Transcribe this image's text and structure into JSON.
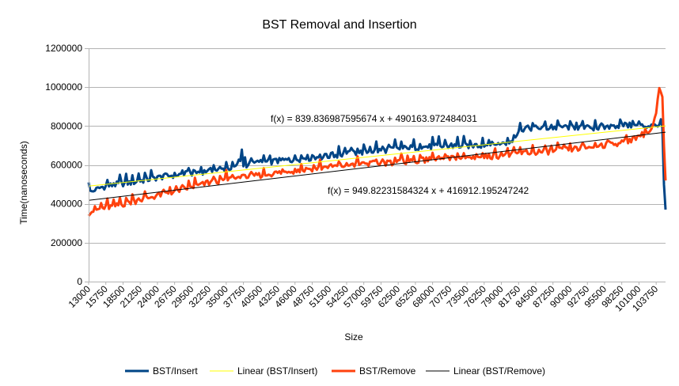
{
  "chart_data": {
    "type": "line",
    "title": "BST Removal and Insertion",
    "xlabel": "Size",
    "ylabel": "Time(nanoseconds)",
    "ylim": [
      0,
      1200000
    ],
    "y_ticks": [
      0,
      200000,
      400000,
      600000,
      800000,
      1000000,
      1200000
    ],
    "y_tick_labels": [
      "0",
      "200000",
      "400000",
      "600000",
      "800000",
      "1000000",
      "1200000"
    ],
    "x_range": [
      13000,
      105250
    ],
    "x_step": 250,
    "x_tick_labels": [
      "13000",
      "15750",
      "18500",
      "21250",
      "24000",
      "26750",
      "29500",
      "32250",
      "35000",
      "37750",
      "40500",
      "43250",
      "46000",
      "48750",
      "51500",
      "54250",
      "57000",
      "59750",
      "62500",
      "65250",
      "68000",
      "70750",
      "73500",
      "76250",
      "79000",
      "81750",
      "84500",
      "87250",
      "90000",
      "92750",
      "95500",
      "98250",
      "101000",
      "103750"
    ],
    "grid": true,
    "legend_position": "bottom",
    "series": [
      {
        "name": "BST/Insert",
        "color": "#004586",
        "anchors_x": [
          13000,
          13250,
          13750,
          15000,
          17500,
          20000,
          22500,
          25000,
          27500,
          30000,
          32500,
          35000,
          36500,
          37000,
          37250,
          37500,
          37750,
          38000,
          40000,
          45000,
          50000,
          55000,
          60000,
          65000,
          70000,
          75000,
          80000,
          81000,
          81500,
          82000,
          84500,
          85000,
          87250,
          90000,
          92750,
          95000,
          98250,
          101000,
          103750,
          104250,
          104500,
          104750,
          105000,
          105250
        ],
        "anchors_y": [
          510000,
          460000,
          465000,
          485000,
          500000,
          510000,
          525000,
          540000,
          550000,
          560000,
          570000,
          580000,
          590000,
          600000,
          610000,
          680000,
          600000,
          600000,
          610000,
          625000,
          640000,
          660000,
          675000,
          690000,
          695000,
          700000,
          710000,
          735000,
          760000,
          785000,
          790000,
          790000,
          790000,
          795000,
          790000,
          790000,
          805000,
          800000,
          800000,
          810000,
          820000,
          790000,
          500000,
          370000
        ]
      },
      {
        "name": "Linear (BST/Insert)",
        "color": "#ffff00",
        "slope": 839.836987595674,
        "intercept": 490163.972484031,
        "equation": "f(x) = 839.836987595674 x + 490163.972484031"
      },
      {
        "name": "BST/Remove",
        "color": "#ff420e",
        "anchors_x": [
          13000,
          13250,
          15000,
          17500,
          20000,
          22500,
          25000,
          27500,
          30000,
          32500,
          35000,
          37500,
          40000,
          45000,
          50000,
          55000,
          60000,
          65000,
          70000,
          75000,
          80000,
          81000,
          82000,
          84500,
          87250,
          90000,
          92750,
          95000,
          98250,
          100000,
          101000,
          102000,
          103000,
          103500,
          104000,
          104250,
          104500,
          104750,
          105000,
          105250
        ],
        "anchors_y": [
          350000,
          360000,
          375000,
          390000,
          410000,
          430000,
          450000,
          470000,
          490000,
          510000,
          525000,
          535000,
          545000,
          565000,
          585000,
          600000,
          610000,
          620000,
          630000,
          640000,
          650000,
          655000,
          660000,
          665000,
          670000,
          680000,
          690000,
          700000,
          715000,
          730000,
          750000,
          760000,
          775000,
          830000,
          900000,
          990000,
          960000,
          950000,
          700000,
          520000
        ]
      },
      {
        "name": "Linear (BST/Remove)",
        "color": "#000000",
        "slope": 949.82231584324,
        "intercept": 416912.195247242,
        "equation": "f(x) = 949.82231584324 x + 416912.195247242"
      }
    ]
  }
}
